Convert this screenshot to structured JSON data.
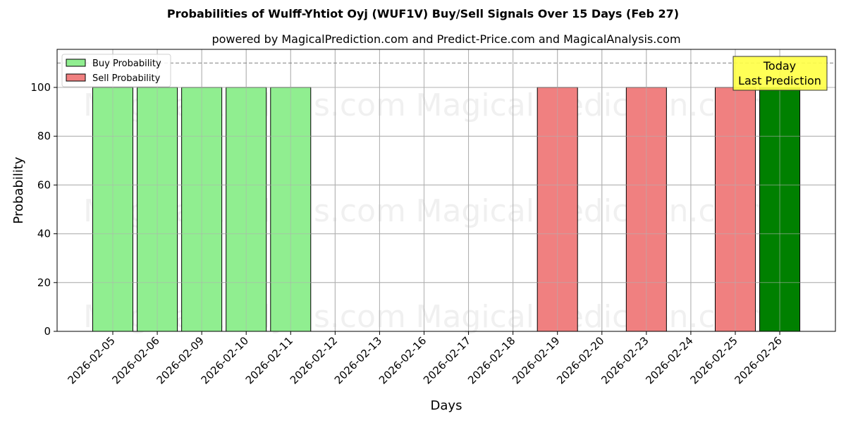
{
  "chart_data": {
    "type": "bar",
    "title": "Probabilities of Wulff-Yhtiot Oyj (WUF1V) Buy/Sell Signals Over 15 Days (Feb 27)",
    "subtitle": "powered by MagicalPrediction.com and Predict-Price.com and MagicalAnalysis.com",
    "xlabel": "Days",
    "ylabel": "Probability",
    "ylim": [
      0,
      115
    ],
    "yticks": [
      0,
      20,
      40,
      60,
      80,
      100
    ],
    "grid": true,
    "legend_position": "upper left",
    "categories": [
      "2026-02-05",
      "2026-02-06",
      "2026-02-09",
      "2026-02-10",
      "2026-02-11",
      "2026-02-12",
      "2026-02-13",
      "2026-02-16",
      "2026-02-17",
      "2026-02-18",
      "2026-02-19",
      "2026-02-20",
      "2026-02-23",
      "2026-02-24",
      "2026-02-25",
      "2026-02-26"
    ],
    "series": [
      {
        "name": "Buy Probability",
        "color": "#90ee90",
        "values": [
          100,
          100,
          100,
          100,
          100,
          0,
          0,
          0,
          0,
          0,
          0,
          0,
          0,
          0,
          0,
          100
        ]
      },
      {
        "name": "Sell Probability",
        "color": "#f08080",
        "values": [
          0,
          0,
          0,
          0,
          0,
          0,
          0,
          0,
          0,
          0,
          100,
          0,
          100,
          0,
          100,
          0
        ]
      }
    ],
    "highlight": {
      "category": "2026-02-26",
      "color": "#008000"
    },
    "reference_line": {
      "y": 110,
      "style": "dashed",
      "color": "#808080"
    },
    "annotation": {
      "lines": [
        "Today",
        "Last Prediction"
      ],
      "background": "#ffff44"
    },
    "watermarks": [
      "MagicalAnalysis.com",
      "MagicalPrediction.com"
    ]
  }
}
